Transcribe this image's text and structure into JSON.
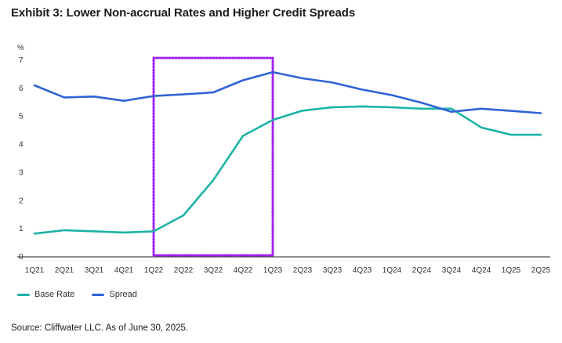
{
  "title": "Exhibit 3: Lower Non-accrual Rates and Higher Credit Spreads",
  "source": "Source: Cliffwater LLC. As of June 30, 2025.",
  "chart_data": {
    "type": "line",
    "y_unit": "%",
    "ylim": [
      0,
      7
    ],
    "yticks": [
      0,
      1,
      2,
      3,
      4,
      5,
      6,
      7
    ],
    "grid": false,
    "legend_placement": "bottom-left",
    "categories": [
      "1Q21",
      "2Q21",
      "3Q21",
      "4Q21",
      "1Q22",
      "2Q22",
      "3Q22",
      "4Q22",
      "1Q23",
      "2Q23",
      "3Q23",
      "4Q23",
      "1Q24",
      "2Q24",
      "3Q24",
      "4Q24",
      "1Q25",
      "2Q25"
    ],
    "series": [
      {
        "name": "Base Rate",
        "color": "#1ab3a6",
        "values": [
          0.8,
          0.92,
          0.88,
          0.84,
          0.88,
          1.45,
          2.7,
          4.28,
          4.85,
          5.18,
          5.3,
          5.33,
          5.3,
          5.25,
          5.25,
          4.58,
          4.32,
          4.32
        ]
      },
      {
        "name": "Spread",
        "color": "#2f63d6",
        "values": [
          6.08,
          5.65,
          5.68,
          5.53,
          5.7,
          5.76,
          5.83,
          6.26,
          6.55,
          6.33,
          6.18,
          5.93,
          5.73,
          5.46,
          5.14,
          5.25,
          5.17,
          5.09
        ]
      }
    ],
    "highlight": {
      "from": "1Q22",
      "to": "1Q23",
      "color": "#a020f0",
      "style": "dotted"
    }
  }
}
